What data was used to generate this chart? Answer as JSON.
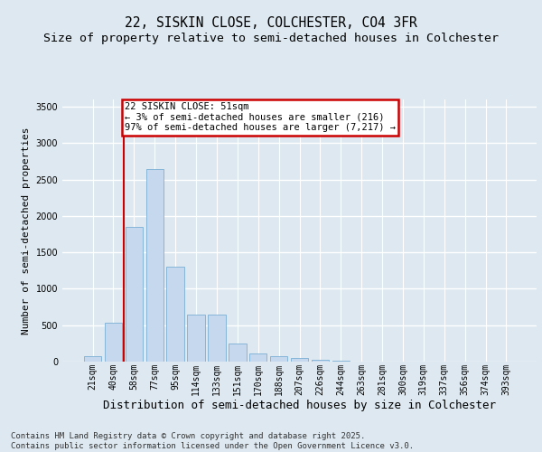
{
  "title_line1": "22, SISKIN CLOSE, COLCHESTER, CO4 3FR",
  "title_line2": "Size of property relative to semi-detached houses in Colchester",
  "xlabel": "Distribution of semi-detached houses by size in Colchester",
  "ylabel": "Number of semi-detached properties",
  "footnote": "Contains HM Land Registry data © Crown copyright and database right 2025.\nContains public sector information licensed under the Open Government Licence v3.0.",
  "categories": [
    "21sqm",
    "40sqm",
    "58sqm",
    "77sqm",
    "95sqm",
    "114sqm",
    "133sqm",
    "151sqm",
    "170sqm",
    "188sqm",
    "207sqm",
    "226sqm",
    "244sqm",
    "263sqm",
    "281sqm",
    "300sqm",
    "319sqm",
    "337sqm",
    "356sqm",
    "374sqm",
    "393sqm"
  ],
  "values": [
    80,
    540,
    1850,
    2650,
    1300,
    650,
    650,
    250,
    110,
    80,
    50,
    25,
    10,
    5,
    3,
    2,
    1,
    1,
    1,
    0,
    0
  ],
  "bar_color": "#c5d8ed",
  "bar_edge_color": "#7aafd4",
  "red_line_x": 1.5,
  "annotation_text": "22 SISKIN CLOSE: 51sqm\n← 3% of semi-detached houses are smaller (216)\n97% of semi-detached houses are larger (7,217) →",
  "annotation_box_color": "#ffffff",
  "annotation_box_edge_color": "#cc0000",
  "red_line_color": "#cc0000",
  "ylim": [
    0,
    3600
  ],
  "yticks": [
    0,
    500,
    1000,
    1500,
    2000,
    2500,
    3000,
    3500
  ],
  "background_color": "#dde8f0",
  "plot_background_color": "#dde8f0",
  "grid_color": "#ffffff",
  "title_fontsize": 10.5,
  "subtitle_fontsize": 9.5,
  "tick_fontsize": 7,
  "ylabel_fontsize": 8,
  "xlabel_fontsize": 9,
  "footnote_fontsize": 6.5
}
